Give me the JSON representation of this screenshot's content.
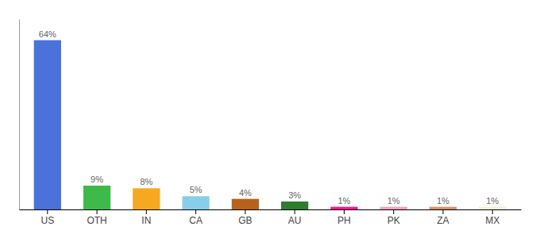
{
  "chart_data": {
    "type": "bar",
    "categories": [
      "US",
      "OTH",
      "IN",
      "CA",
      "GB",
      "AU",
      "PH",
      "PK",
      "ZA",
      "MX"
    ],
    "values": [
      64,
      9,
      8,
      5,
      4,
      3,
      1,
      1,
      1,
      1
    ],
    "value_labels": [
      "64%",
      "9%",
      "8%",
      "5%",
      "4%",
      "3%",
      "1%",
      "1%",
      "1%",
      "1%"
    ],
    "colors": [
      "#4a72d8",
      "#3dba4a",
      "#f5a820",
      "#87ceeb",
      "#b8611a",
      "#2e7d2e",
      "#ff1493",
      "#f4a0c0",
      "#d4936a",
      "#f0f0d8"
    ],
    "ylim": [
      0,
      72
    ],
    "data_labels": true,
    "tick_labels": "x"
  }
}
